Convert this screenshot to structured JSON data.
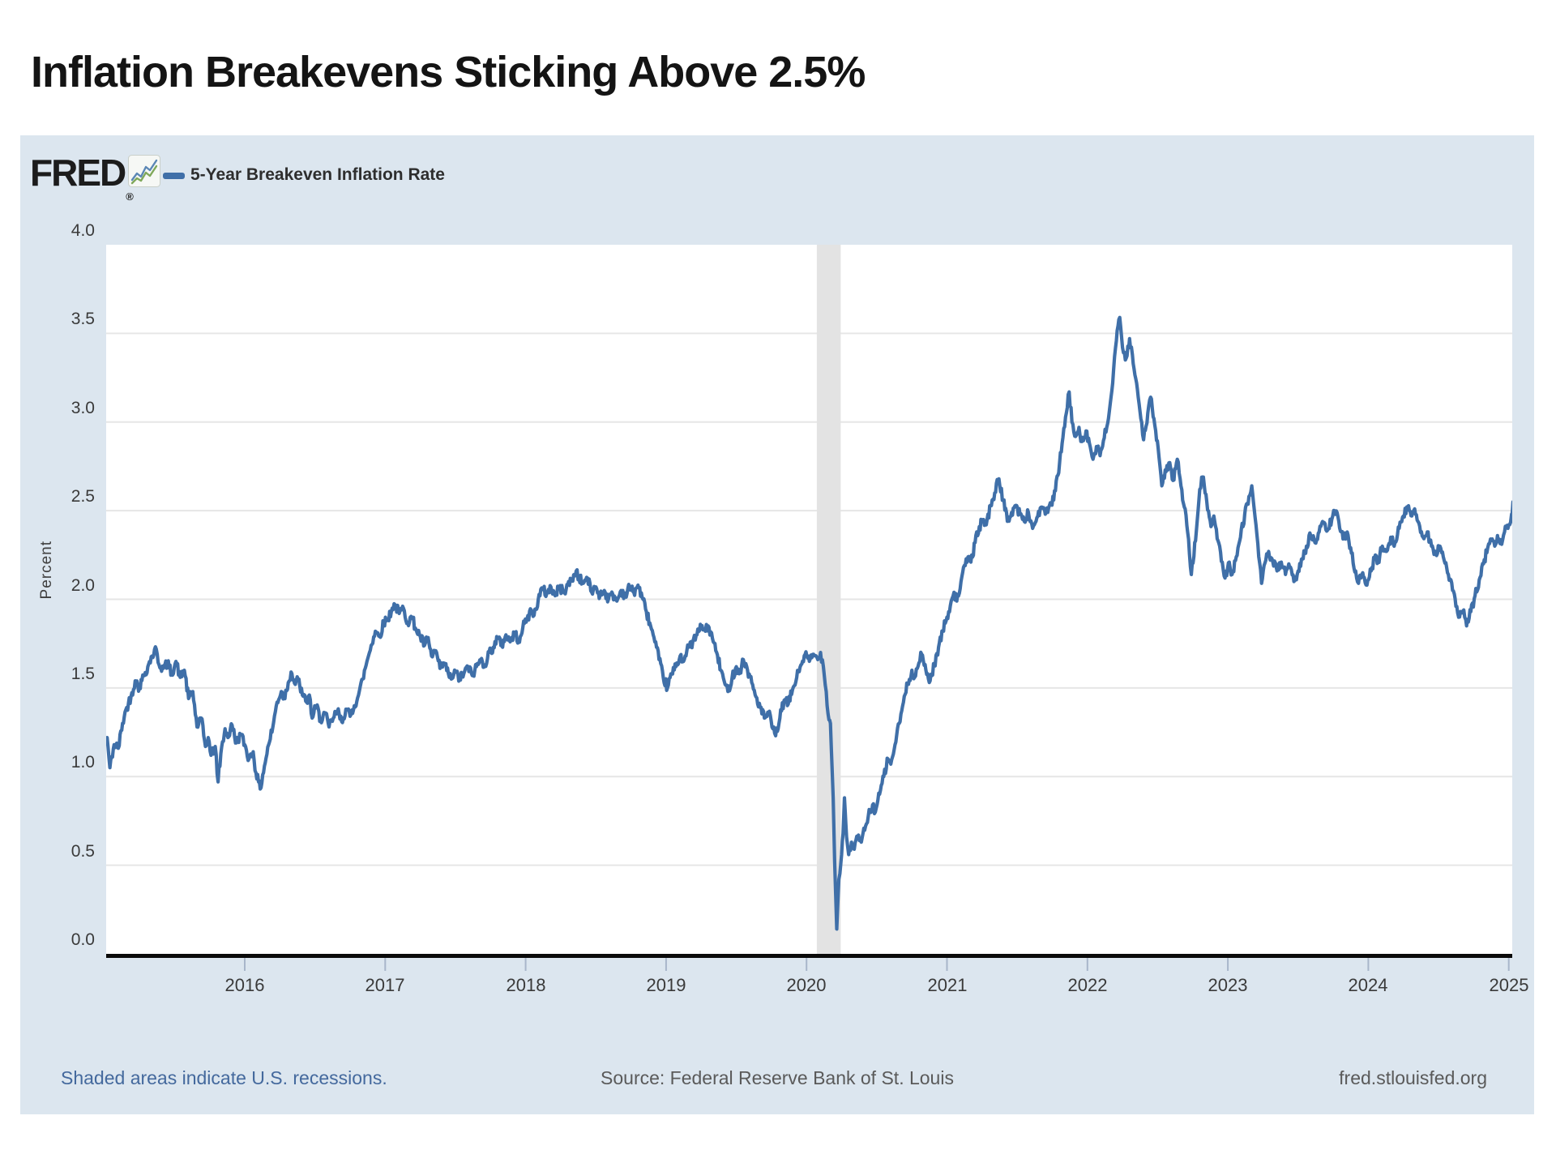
{
  "page": {
    "title": "Inflation Breakevens Sticking Above 2.5%"
  },
  "chart": {
    "brand": "FRED",
    "brand_reg": "®",
    "legend": {
      "label": "5-Year Breakeven Inflation Rate"
    },
    "y_axis": {
      "label": "Percent",
      "ticks": [
        "4.0",
        "3.5",
        "3.0",
        "2.5",
        "2.0",
        "1.5",
        "1.0",
        "0.5",
        "0.0"
      ]
    },
    "x_axis": {
      "ticks": [
        "2016",
        "2017",
        "2018",
        "2019",
        "2020",
        "2021",
        "2022",
        "2023",
        "2024",
        "2025"
      ]
    },
    "footer": {
      "left": "Shaded areas indicate U.S. recessions.",
      "center": "Source: Federal Reserve Bank of St. Louis",
      "right": "fred.stlouisfed.org"
    },
    "colors": {
      "panel_bg": "#dce6ef",
      "plot_bg": "#ffffff",
      "line": "#3f6fa8",
      "gridline": "#e6e6e6",
      "axis": "#0a0a0a",
      "tick": "#a8b6ca",
      "recession_band": "#e3e3e3",
      "link_blue": "#44699d"
    }
  },
  "chart_data": {
    "type": "line",
    "title": "Inflation Breakevens Sticking Above 2.5%",
    "series_name": "5-Year Breakeven Inflation Rate",
    "ylabel": "Percent",
    "ylim": [
      0.0,
      4.0
    ],
    "xlim": [
      2015.0,
      2025.05
    ],
    "grid": true,
    "legend_position": "top-left",
    "recession_bands": [
      [
        2020.073,
        2020.243
      ]
    ],
    "points": [
      [
        2015.02,
        1.22
      ],
      [
        2015.04,
        1.05
      ],
      [
        2015.07,
        1.18
      ],
      [
        2015.1,
        1.16
      ],
      [
        2015.13,
        1.3
      ],
      [
        2015.16,
        1.39
      ],
      [
        2015.19,
        1.45
      ],
      [
        2015.22,
        1.54
      ],
      [
        2015.25,
        1.5
      ],
      [
        2015.28,
        1.57
      ],
      [
        2015.31,
        1.62
      ],
      [
        2015.34,
        1.68
      ],
      [
        2015.37,
        1.72
      ],
      [
        2015.39,
        1.63
      ],
      [
        2015.42,
        1.61
      ],
      [
        2015.45,
        1.64
      ],
      [
        2015.48,
        1.58
      ],
      [
        2015.51,
        1.65
      ],
      [
        2015.54,
        1.56
      ],
      [
        2015.57,
        1.6
      ],
      [
        2015.6,
        1.44
      ],
      [
        2015.63,
        1.48
      ],
      [
        2015.66,
        1.28
      ],
      [
        2015.69,
        1.33
      ],
      [
        2015.72,
        1.17
      ],
      [
        2015.74,
        1.22
      ],
      [
        2015.76,
        1.12
      ],
      [
        2015.79,
        1.17
      ],
      [
        2015.81,
        0.97
      ],
      [
        2015.83,
        1.13
      ],
      [
        2015.86,
        1.27
      ],
      [
        2015.88,
        1.22
      ],
      [
        2015.91,
        1.29
      ],
      [
        2015.94,
        1.19
      ],
      [
        2015.97,
        1.24
      ],
      [
        2016.0,
        1.18
      ],
      [
        2016.03,
        1.1
      ],
      [
        2016.06,
        1.14
      ],
      [
        2016.08,
        1.02
      ],
      [
        2016.11,
        0.93
      ],
      [
        2016.14,
        1.06
      ],
      [
        2016.17,
        1.18
      ],
      [
        2016.2,
        1.28
      ],
      [
        2016.23,
        1.42
      ],
      [
        2016.26,
        1.48
      ],
      [
        2016.28,
        1.44
      ],
      [
        2016.31,
        1.53
      ],
      [
        2016.33,
        1.59
      ],
      [
        2016.36,
        1.52
      ],
      [
        2016.38,
        1.55
      ],
      [
        2016.41,
        1.46
      ],
      [
        2016.44,
        1.42
      ],
      [
        2016.46,
        1.46
      ],
      [
        2016.48,
        1.33
      ],
      [
        2016.51,
        1.4
      ],
      [
        2016.54,
        1.32
      ],
      [
        2016.57,
        1.36
      ],
      [
        2016.6,
        1.28
      ],
      [
        2016.63,
        1.33
      ],
      [
        2016.66,
        1.37
      ],
      [
        2016.69,
        1.31
      ],
      [
        2016.72,
        1.38
      ],
      [
        2016.75,
        1.34
      ],
      [
        2016.78,
        1.4
      ],
      [
        2016.81,
        1.46
      ],
      [
        2016.84,
        1.55
      ],
      [
        2016.87,
        1.65
      ],
      [
        2016.9,
        1.74
      ],
      [
        2016.93,
        1.82
      ],
      [
        2016.96,
        1.79
      ],
      [
        2016.99,
        1.87
      ],
      [
        2017.02,
        1.89
      ],
      [
        2017.05,
        1.95
      ],
      [
        2017.07,
        1.97
      ],
      [
        2017.1,
        1.92
      ],
      [
        2017.13,
        1.95
      ],
      [
        2017.16,
        1.87
      ],
      [
        2017.19,
        1.9
      ],
      [
        2017.22,
        1.83
      ],
      [
        2017.25,
        1.79
      ],
      [
        2017.28,
        1.74
      ],
      [
        2017.3,
        1.78
      ],
      [
        2017.33,
        1.68
      ],
      [
        2017.36,
        1.71
      ],
      [
        2017.39,
        1.61
      ],
      [
        2017.42,
        1.64
      ],
      [
        2017.45,
        1.58
      ],
      [
        2017.47,
        1.55
      ],
      [
        2017.5,
        1.59
      ],
      [
        2017.53,
        1.55
      ],
      [
        2017.56,
        1.58
      ],
      [
        2017.59,
        1.62
      ],
      [
        2017.62,
        1.57
      ],
      [
        2017.65,
        1.62
      ],
      [
        2017.68,
        1.66
      ],
      [
        2017.71,
        1.63
      ],
      [
        2017.74,
        1.7
      ],
      [
        2017.77,
        1.73
      ],
      [
        2017.8,
        1.78
      ],
      [
        2017.83,
        1.74
      ],
      [
        2017.86,
        1.8
      ],
      [
        2017.89,
        1.76
      ],
      [
        2017.92,
        1.81
      ],
      [
        2017.95,
        1.77
      ],
      [
        2017.98,
        1.84
      ],
      [
        2018.01,
        1.89
      ],
      [
        2018.04,
        1.94
      ],
      [
        2018.06,
        1.91
      ],
      [
        2018.09,
        2.0
      ],
      [
        2018.12,
        2.06
      ],
      [
        2018.15,
        2.03
      ],
      [
        2018.18,
        2.07
      ],
      [
        2018.21,
        2.02
      ],
      [
        2018.24,
        2.07
      ],
      [
        2018.27,
        2.04
      ],
      [
        2018.3,
        2.08
      ],
      [
        2018.33,
        2.11
      ],
      [
        2018.36,
        2.16
      ],
      [
        2018.38,
        2.12
      ],
      [
        2018.41,
        2.09
      ],
      [
        2018.44,
        2.12
      ],
      [
        2018.47,
        2.04
      ],
      [
        2018.5,
        2.07
      ],
      [
        2018.53,
        2.02
      ],
      [
        2018.56,
        2.05
      ],
      [
        2018.59,
        2.0
      ],
      [
        2018.62,
        2.03
      ],
      [
        2018.65,
        1.99
      ],
      [
        2018.68,
        2.05
      ],
      [
        2018.71,
        2.02
      ],
      [
        2018.74,
        2.07
      ],
      [
        2018.77,
        2.04
      ],
      [
        2018.8,
        2.08
      ],
      [
        2018.83,
        2.01
      ],
      [
        2018.86,
        1.93
      ],
      [
        2018.89,
        1.85
      ],
      [
        2018.92,
        1.76
      ],
      [
        2018.95,
        1.66
      ],
      [
        2018.98,
        1.56
      ],
      [
        2019.01,
        1.5
      ],
      [
        2019.04,
        1.58
      ],
      [
        2019.07,
        1.62
      ],
      [
        2019.1,
        1.68
      ],
      [
        2019.13,
        1.66
      ],
      [
        2019.16,
        1.73
      ],
      [
        2019.19,
        1.76
      ],
      [
        2019.22,
        1.8
      ],
      [
        2019.25,
        1.85
      ],
      [
        2019.28,
        1.82
      ],
      [
        2019.3,
        1.85
      ],
      [
        2019.33,
        1.78
      ],
      [
        2019.36,
        1.7
      ],
      [
        2019.39,
        1.6
      ],
      [
        2019.42,
        1.52
      ],
      [
        2019.44,
        1.48
      ],
      [
        2019.47,
        1.56
      ],
      [
        2019.5,
        1.62
      ],
      [
        2019.52,
        1.58
      ],
      [
        2019.55,
        1.66
      ],
      [
        2019.58,
        1.6
      ],
      [
        2019.61,
        1.53
      ],
      [
        2019.64,
        1.45
      ],
      [
        2019.67,
        1.39
      ],
      [
        2019.7,
        1.33
      ],
      [
        2019.73,
        1.36
      ],
      [
        2019.76,
        1.27
      ],
      [
        2019.78,
        1.23
      ],
      [
        2019.81,
        1.33
      ],
      [
        2019.84,
        1.43
      ],
      [
        2019.87,
        1.41
      ],
      [
        2019.9,
        1.49
      ],
      [
        2019.93,
        1.56
      ],
      [
        2019.96,
        1.63
      ],
      [
        2019.99,
        1.69
      ],
      [
        2020.02,
        1.65
      ],
      [
        2020.05,
        1.69
      ],
      [
        2020.08,
        1.66
      ],
      [
        2020.1,
        1.7
      ],
      [
        2020.12,
        1.62
      ],
      [
        2020.14,
        1.48
      ],
      [
        2020.16,
        1.32
      ],
      [
        2020.17,
        1.3
      ],
      [
        2020.19,
        0.88
      ],
      [
        2020.2,
        0.52
      ],
      [
        2020.215,
        0.14
      ],
      [
        2020.23,
        0.42
      ],
      [
        2020.245,
        0.52
      ],
      [
        2020.26,
        0.68
      ],
      [
        2020.27,
        0.88
      ],
      [
        2020.285,
        0.66
      ],
      [
        2020.3,
        0.56
      ],
      [
        2020.32,
        0.63
      ],
      [
        2020.34,
        0.59
      ],
      [
        2020.37,
        0.67
      ],
      [
        2020.39,
        0.63
      ],
      [
        2020.42,
        0.72
      ],
      [
        2020.44,
        0.78
      ],
      [
        2020.47,
        0.84
      ],
      [
        2020.49,
        0.8
      ],
      [
        2020.52,
        0.9
      ],
      [
        2020.55,
        1.0
      ],
      [
        2020.58,
        1.1
      ],
      [
        2020.6,
        1.07
      ],
      [
        2020.63,
        1.18
      ],
      [
        2020.66,
        1.3
      ],
      [
        2020.69,
        1.42
      ],
      [
        2020.72,
        1.52
      ],
      [
        2020.75,
        1.6
      ],
      [
        2020.77,
        1.56
      ],
      [
        2020.8,
        1.64
      ],
      [
        2020.82,
        1.69
      ],
      [
        2020.85,
        1.6
      ],
      [
        2020.88,
        1.54
      ],
      [
        2020.91,
        1.63
      ],
      [
        2020.94,
        1.73
      ],
      [
        2020.97,
        1.82
      ],
      [
        2021.0,
        1.9
      ],
      [
        2021.03,
        1.99
      ],
      [
        2021.05,
        2.04
      ],
      [
        2021.07,
        1.99
      ],
      [
        2021.1,
        2.1
      ],
      [
        2021.13,
        2.19
      ],
      [
        2021.15,
        2.24
      ],
      [
        2021.17,
        2.21
      ],
      [
        2021.2,
        2.32
      ],
      [
        2021.23,
        2.41
      ],
      [
        2021.26,
        2.45
      ],
      [
        2021.28,
        2.42
      ],
      [
        2021.31,
        2.53
      ],
      [
        2021.34,
        2.6
      ],
      [
        2021.37,
        2.68
      ],
      [
        2021.4,
        2.56
      ],
      [
        2021.43,
        2.44
      ],
      [
        2021.46,
        2.49
      ],
      [
        2021.49,
        2.53
      ],
      [
        2021.52,
        2.48
      ],
      [
        2021.55,
        2.44
      ],
      [
        2021.58,
        2.49
      ],
      [
        2021.61,
        2.4
      ],
      [
        2021.64,
        2.46
      ],
      [
        2021.67,
        2.52
      ],
      [
        2021.7,
        2.48
      ],
      [
        2021.73,
        2.53
      ],
      [
        2021.76,
        2.56
      ],
      [
        2021.79,
        2.7
      ],
      [
        2021.82,
        2.88
      ],
      [
        2021.85,
        3.05
      ],
      [
        2021.87,
        3.17
      ],
      [
        2021.89,
        3.0
      ],
      [
        2021.91,
        2.92
      ],
      [
        2021.94,
        2.97
      ],
      [
        2021.96,
        2.89
      ],
      [
        2021.99,
        2.95
      ],
      [
        2022.02,
        2.86
      ],
      [
        2022.04,
        2.79
      ],
      [
        2022.07,
        2.86
      ],
      [
        2022.09,
        2.81
      ],
      [
        2022.12,
        2.91
      ],
      [
        2022.15,
        3.02
      ],
      [
        2022.18,
        3.22
      ],
      [
        2022.2,
        3.42
      ],
      [
        2022.23,
        3.59
      ],
      [
        2022.25,
        3.42
      ],
      [
        2022.27,
        3.35
      ],
      [
        2022.3,
        3.47
      ],
      [
        2022.32,
        3.38
      ],
      [
        2022.35,
        3.22
      ],
      [
        2022.38,
        3.02
      ],
      [
        2022.4,
        2.9
      ],
      [
        2022.43,
        3.05
      ],
      [
        2022.45,
        3.14
      ],
      [
        2022.48,
        2.98
      ],
      [
        2022.51,
        2.8
      ],
      [
        2022.53,
        2.64
      ],
      [
        2022.56,
        2.72
      ],
      [
        2022.58,
        2.77
      ],
      [
        2022.61,
        2.67
      ],
      [
        2022.64,
        2.79
      ],
      [
        2022.66,
        2.68
      ],
      [
        2022.69,
        2.52
      ],
      [
        2022.72,
        2.34
      ],
      [
        2022.74,
        2.14
      ],
      [
        2022.77,
        2.33
      ],
      [
        2022.8,
        2.62
      ],
      [
        2022.82,
        2.69
      ],
      [
        2022.85,
        2.55
      ],
      [
        2022.88,
        2.41
      ],
      [
        2022.9,
        2.47
      ],
      [
        2022.93,
        2.33
      ],
      [
        2022.96,
        2.21
      ],
      [
        2022.98,
        2.12
      ],
      [
        2023.01,
        2.21
      ],
      [
        2023.03,
        2.14
      ],
      [
        2023.06,
        2.24
      ],
      [
        2023.09,
        2.35
      ],
      [
        2023.12,
        2.48
      ],
      [
        2023.15,
        2.58
      ],
      [
        2023.17,
        2.64
      ],
      [
        2023.2,
        2.42
      ],
      [
        2023.22,
        2.24
      ],
      [
        2023.24,
        2.09
      ],
      [
        2023.27,
        2.22
      ],
      [
        2023.29,
        2.27
      ],
      [
        2023.32,
        2.21
      ],
      [
        2023.35,
        2.16
      ],
      [
        2023.38,
        2.21
      ],
      [
        2023.41,
        2.14
      ],
      [
        2023.44,
        2.18
      ],
      [
        2023.47,
        2.1
      ],
      [
        2023.5,
        2.16
      ],
      [
        2023.53,
        2.23
      ],
      [
        2023.56,
        2.3
      ],
      [
        2023.59,
        2.36
      ],
      [
        2023.62,
        2.32
      ],
      [
        2023.65,
        2.38
      ],
      [
        2023.68,
        2.43
      ],
      [
        2023.71,
        2.39
      ],
      [
        2023.74,
        2.45
      ],
      [
        2023.76,
        2.5
      ],
      [
        2023.79,
        2.44
      ],
      [
        2023.82,
        2.34
      ],
      [
        2023.85,
        2.38
      ],
      [
        2023.88,
        2.26
      ],
      [
        2023.91,
        2.16
      ],
      [
        2023.93,
        2.09
      ],
      [
        2023.96,
        2.15
      ],
      [
        2023.99,
        2.08
      ],
      [
        2024.02,
        2.16
      ],
      [
        2024.05,
        2.25
      ],
      [
        2024.07,
        2.21
      ],
      [
        2024.1,
        2.3
      ],
      [
        2024.13,
        2.27
      ],
      [
        2024.16,
        2.35
      ],
      [
        2024.19,
        2.32
      ],
      [
        2024.22,
        2.4
      ],
      [
        2024.25,
        2.47
      ],
      [
        2024.28,
        2.52
      ],
      [
        2024.31,
        2.47
      ],
      [
        2024.33,
        2.51
      ],
      [
        2024.36,
        2.43
      ],
      [
        2024.39,
        2.35
      ],
      [
        2024.42,
        2.38
      ],
      [
        2024.45,
        2.3
      ],
      [
        2024.48,
        2.26
      ],
      [
        2024.51,
        2.3
      ],
      [
        2024.54,
        2.22
      ],
      [
        2024.57,
        2.14
      ],
      [
        2024.6,
        2.05
      ],
      [
        2024.63,
        1.96
      ],
      [
        2024.65,
        1.9
      ],
      [
        2024.68,
        1.94
      ],
      [
        2024.7,
        1.85
      ],
      [
        2024.73,
        1.93
      ],
      [
        2024.76,
        2.02
      ],
      [
        2024.79,
        2.11
      ],
      [
        2024.82,
        2.2
      ],
      [
        2024.85,
        2.29
      ],
      [
        2024.87,
        2.34
      ],
      [
        2024.9,
        2.3
      ],
      [
        2024.92,
        2.36
      ],
      [
        2024.95,
        2.31
      ],
      [
        2024.97,
        2.38
      ],
      [
        2025.0,
        2.42
      ],
      [
        2025.02,
        2.48
      ],
      [
        2025.03,
        2.55
      ]
    ]
  }
}
